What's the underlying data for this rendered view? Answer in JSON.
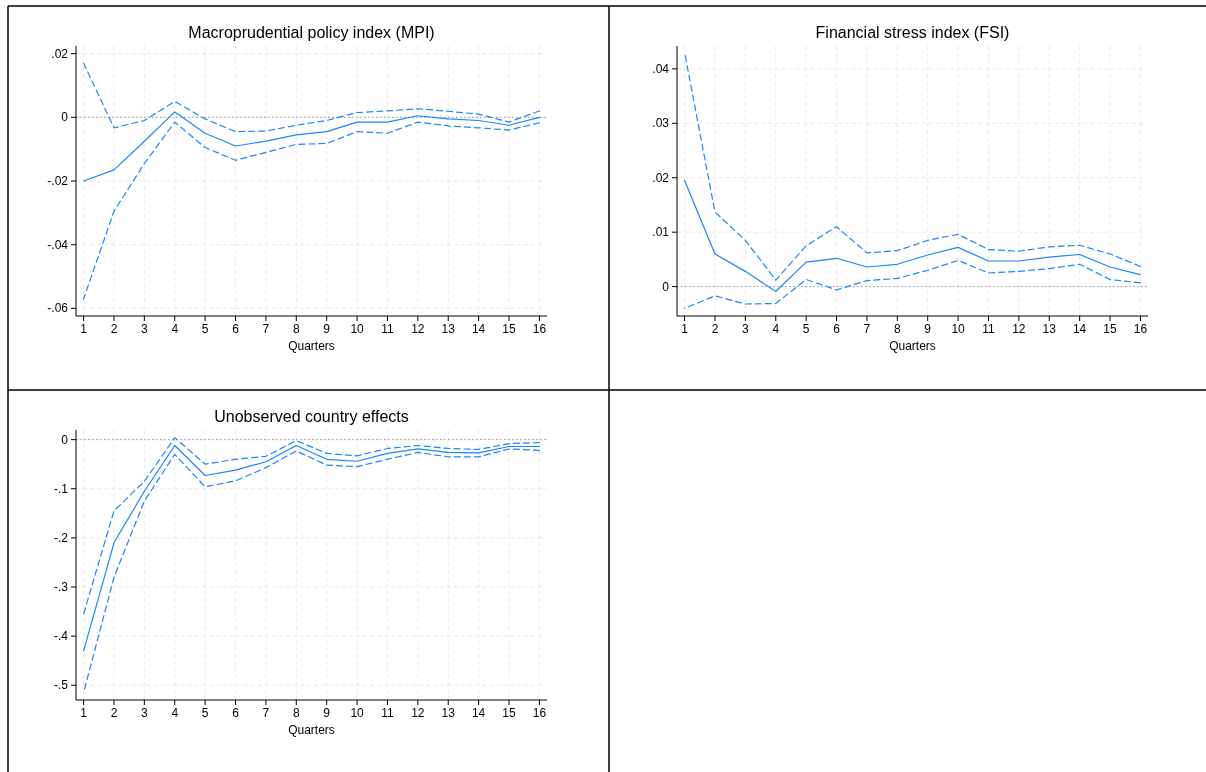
{
  "chart_data": [
    {
      "type": "line",
      "title": "Macroprudential policy index (MPI)",
      "xlabel": "Quarters",
      "x": [
        1,
        2,
        3,
        4,
        5,
        6,
        7,
        8,
        9,
        10,
        11,
        12,
        13,
        14,
        15,
        16
      ],
      "xlim": [
        0.75,
        16.25
      ],
      "xticks": [
        1,
        2,
        3,
        4,
        5,
        6,
        7,
        8,
        9,
        10,
        11,
        12,
        13,
        14,
        15,
        16
      ],
      "ylim": [
        -0.0624,
        0.0224
      ],
      "yticks": [
        {
          "value": 0.02,
          "label": ".02"
        },
        {
          "value": 0,
          "label": "0"
        },
        {
          "value": -0.02,
          "label": "-.02"
        },
        {
          "value": -0.04,
          "label": "-.04"
        },
        {
          "value": -0.06,
          "label": "-.06"
        }
      ],
      "grid": true,
      "marker": "none",
      "ref_lines": [
        {
          "axis": "y",
          "value": 0,
          "color": "#999999",
          "line_style": "dotted"
        }
      ],
      "series": [
        {
          "color": "#1a85ff",
          "line_style": "solid",
          "values": [
            -0.02,
            -0.0165,
            -0.0075,
            0.0017,
            -0.005,
            -0.009,
            -0.0075,
            -0.0055,
            -0.0045,
            -0.0015,
            -0.0015,
            0.0005,
            -0.0005,
            -0.001,
            -0.0025,
            0
          ]
        },
        {
          "color": "#1a85ff",
          "line_style": "dashed",
          "values": [
            0.017,
            -0.0033,
            -0.001,
            0.005,
            -0.0005,
            -0.0045,
            -0.0043,
            -0.0025,
            -0.001,
            0.0015,
            0.002,
            0.0027,
            0.0019,
            0.001,
            -0.0015,
            0.002
          ]
        },
        {
          "color": "#1a85ff",
          "line_style": "dashed",
          "values": [
            -0.057,
            -0.0295,
            -0.0145,
            -0.0015,
            -0.0095,
            -0.0135,
            -0.011,
            -0.0085,
            -0.0082,
            -0.0045,
            -0.005,
            -0.0015,
            -0.0027,
            -0.0033,
            -0.004,
            -0.0017
          ]
        }
      ]
    },
    {
      "type": "line",
      "title": "Financial stress index (FSI)",
      "xlabel": "Quarters",
      "x": [
        1,
        2,
        3,
        4,
        5,
        6,
        7,
        8,
        9,
        10,
        11,
        12,
        13,
        14,
        15,
        16
      ],
      "xlim": [
        0.75,
        16.25
      ],
      "xticks": [
        1,
        2,
        3,
        4,
        5,
        6,
        7,
        8,
        9,
        10,
        11,
        12,
        13,
        14,
        15,
        16
      ],
      "ylim": [
        -0.0054,
        0.0442
      ],
      "yticks": [
        {
          "value": 0.04,
          "label": ".04"
        },
        {
          "value": 0.03,
          "label": ".03"
        },
        {
          "value": 0.02,
          "label": ".02"
        },
        {
          "value": 0.01,
          "label": ".01"
        },
        {
          "value": 0,
          "label": "0"
        }
      ],
      "grid": true,
      "marker": "none",
      "ref_lines": [
        {
          "axis": "y",
          "value": 0,
          "color": "#999999",
          "line_style": "dotted"
        }
      ],
      "series": [
        {
          "color": "#1a85ff",
          "line_style": "solid",
          "values": [
            0.0195,
            0.006,
            0.0028,
            -0.0009,
            0.0045,
            0.0052,
            0.0036,
            0.0041,
            0.0058,
            0.0072,
            0.0047,
            0.0047,
            0.0054,
            0.0059,
            0.0036,
            0.0022
          ]
        },
        {
          "color": "#1a85ff",
          "line_style": "dashed",
          "values": [
            0.043,
            0.0137,
            0.0085,
            0.0012,
            0.0075,
            0.011,
            0.0062,
            0.0066,
            0.0085,
            0.0096,
            0.0068,
            0.0065,
            0.0073,
            0.0076,
            0.006,
            0.0037
          ]
        },
        {
          "color": "#1a85ff",
          "line_style": "dashed",
          "values": [
            -0.004,
            -0.0017,
            -0.0032,
            -0.0031,
            0.0013,
            -0.0006,
            0.0011,
            0.0015,
            0.003,
            0.0048,
            0.0025,
            0.0028,
            0.0033,
            0.0041,
            0.0013,
            0.0007
          ]
        }
      ]
    },
    {
      "type": "line",
      "title": "Unobserved country effects",
      "xlabel": "Quarters",
      "x": [
        1,
        2,
        3,
        4,
        5,
        6,
        7,
        8,
        9,
        10,
        11,
        12,
        13,
        14,
        15,
        16
      ],
      "xlim": [
        0.75,
        16.25
      ],
      "xticks": [
        1,
        2,
        3,
        4,
        5,
        6,
        7,
        8,
        9,
        10,
        11,
        12,
        13,
        14,
        15,
        16
      ],
      "ylim": [
        -0.53,
        0.0196
      ],
      "yticks": [
        {
          "value": 0,
          "label": "0"
        },
        {
          "value": -0.1,
          "label": "-.1"
        },
        {
          "value": -0.2,
          "label": "-.2"
        },
        {
          "value": -0.3,
          "label": "-.3"
        },
        {
          "value": -0.4,
          "label": "-.4"
        },
        {
          "value": -0.5,
          "label": "-.5"
        }
      ],
      "grid": true,
      "marker": "none",
      "ref_lines": [
        {
          "axis": "y",
          "value": 0,
          "color": "#999999",
          "line_style": "dotted"
        }
      ],
      "series": [
        {
          "color": "#1a85ff",
          "line_style": "solid",
          "values": [
            -0.43,
            -0.21,
            -0.105,
            -0.012,
            -0.073,
            -0.062,
            -0.045,
            -0.012,
            -0.04,
            -0.044,
            -0.028,
            -0.019,
            -0.026,
            -0.027,
            -0.014,
            -0.014
          ]
        },
        {
          "color": "#1a85ff",
          "line_style": "dashed",
          "values": [
            -0.355,
            -0.145,
            -0.085,
            0.004,
            -0.05,
            -0.04,
            -0.034,
            -0.002,
            -0.028,
            -0.033,
            -0.018,
            -0.012,
            -0.018,
            -0.02,
            -0.008,
            -0.006
          ]
        },
        {
          "color": "#1a85ff",
          "line_style": "dashed",
          "values": [
            -0.515,
            -0.28,
            -0.125,
            -0.03,
            -0.096,
            -0.084,
            -0.057,
            -0.023,
            -0.052,
            -0.055,
            -0.04,
            -0.026,
            -0.035,
            -0.035,
            -0.019,
            -0.022
          ]
        }
      ]
    }
  ]
}
